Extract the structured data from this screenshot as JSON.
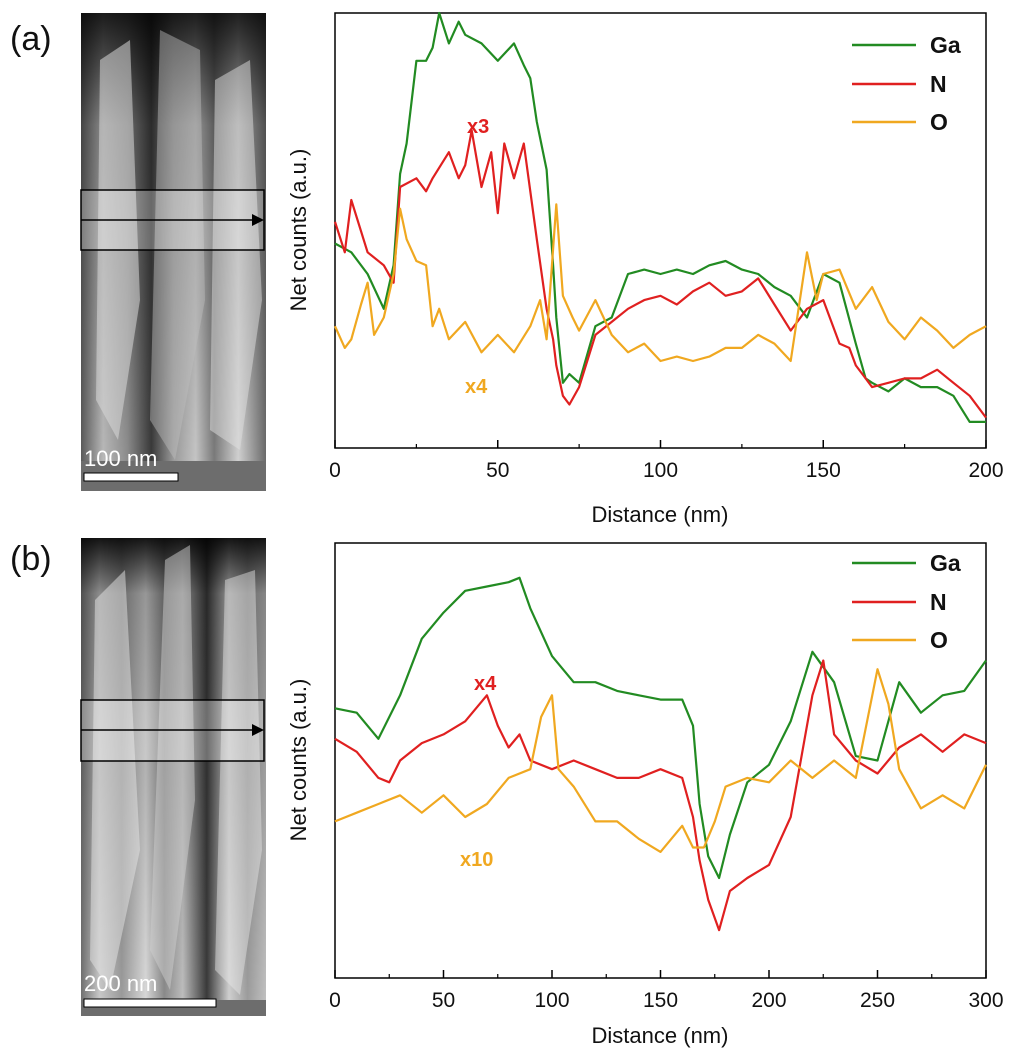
{
  "panels": [
    {
      "label": "(a)",
      "scale_bar": "100 nm"
    },
    {
      "label": "(b)",
      "scale_bar": "200 nm"
    }
  ],
  "colors": {
    "Ga": "#228b22",
    "N": "#e02020",
    "O": "#f0a820"
  },
  "chart_data": [
    {
      "type": "line",
      "title": "",
      "xlabel": "Distance (nm)",
      "ylabel": "Net counts (a.u.)",
      "xlim": [
        0,
        200
      ],
      "ylim": [
        0,
        10
      ],
      "xticks": [
        0,
        50,
        100,
        150,
        200
      ],
      "legend": {
        "position": "top-right",
        "entries": [
          "Ga",
          "N",
          "O"
        ]
      },
      "annotations": [
        {
          "text": "x3",
          "series": "N",
          "x": 45,
          "y": 7.5
        },
        {
          "text": "x4",
          "series": "O",
          "x": 45,
          "y": 1.4
        }
      ],
      "series": [
        {
          "name": "Ga",
          "x": [
            0,
            5,
            10,
            15,
            18,
            20,
            22,
            25,
            28,
            30,
            32,
            35,
            38,
            40,
            45,
            50,
            55,
            58,
            60,
            62,
            65,
            67,
            68,
            70,
            72,
            75,
            80,
            85,
            90,
            95,
            100,
            105,
            110,
            115,
            120,
            125,
            130,
            135,
            140,
            145,
            150,
            155,
            160,
            163,
            165,
            170,
            175,
            180,
            185,
            190,
            195,
            200
          ],
          "y": [
            4.7,
            4.5,
            4.0,
            3.2,
            4.2,
            6.3,
            7.0,
            8.9,
            8.9,
            9.2,
            10.0,
            9.3,
            9.8,
            9.5,
            9.3,
            8.9,
            9.3,
            8.8,
            8.5,
            7.5,
            6.4,
            4.2,
            3.0,
            1.5,
            1.7,
            1.5,
            2.8,
            3.0,
            4.0,
            4.1,
            4.0,
            4.1,
            4.0,
            4.2,
            4.3,
            4.1,
            4.0,
            3.7,
            3.5,
            3.0,
            4.0,
            3.8,
            2.4,
            1.6,
            1.5,
            1.3,
            1.6,
            1.4,
            1.4,
            1.2,
            0.6,
            0.6
          ]
        },
        {
          "name": "N",
          "x": [
            0,
            3,
            5,
            10,
            15,
            18,
            20,
            25,
            28,
            30,
            35,
            38,
            40,
            42,
            45,
            48,
            50,
            52,
            55,
            58,
            60,
            62,
            65,
            67,
            68,
            70,
            72,
            75,
            80,
            85,
            90,
            95,
            100,
            105,
            110,
            115,
            120,
            125,
            130,
            135,
            140,
            145,
            150,
            155,
            158,
            160,
            163,
            165,
            170,
            175,
            180,
            185,
            190,
            195,
            200
          ],
          "y": [
            5.2,
            4.5,
            5.7,
            4.5,
            4.2,
            3.8,
            6.0,
            6.2,
            5.9,
            6.2,
            6.8,
            6.2,
            6.5,
            7.3,
            6.0,
            6.8,
            5.4,
            7.0,
            6.2,
            7.0,
            5.9,
            4.8,
            3.2,
            2.5,
            1.9,
            1.2,
            1.0,
            1.4,
            2.6,
            2.9,
            3.2,
            3.4,
            3.5,
            3.3,
            3.6,
            3.8,
            3.5,
            3.6,
            3.9,
            3.3,
            2.7,
            3.2,
            3.4,
            2.4,
            2.3,
            1.9,
            1.6,
            1.4,
            1.5,
            1.6,
            1.6,
            1.8,
            1.5,
            1.2,
            0.7
          ]
        },
        {
          "name": "O",
          "x": [
            0,
            3,
            5,
            8,
            10,
            12,
            15,
            18,
            20,
            22,
            25,
            28,
            30,
            32,
            35,
            40,
            45,
            50,
            55,
            60,
            63,
            65,
            68,
            70,
            73,
            75,
            80,
            85,
            90,
            95,
            100,
            105,
            110,
            115,
            120,
            125,
            130,
            135,
            140,
            143,
            145,
            148,
            150,
            155,
            160,
            165,
            170,
            175,
            180,
            185,
            190,
            195,
            200
          ],
          "y": [
            2.8,
            2.3,
            2.5,
            3.3,
            3.8,
            2.6,
            3.0,
            4.0,
            5.5,
            4.8,
            4.3,
            4.2,
            2.8,
            3.2,
            2.5,
            2.9,
            2.2,
            2.6,
            2.2,
            2.8,
            3.4,
            2.5,
            5.6,
            3.5,
            3.0,
            2.7,
            3.4,
            2.6,
            2.2,
            2.4,
            2.0,
            2.1,
            2.0,
            2.1,
            2.3,
            2.3,
            2.6,
            2.4,
            2.0,
            3.5,
            4.5,
            3.4,
            4.0,
            4.1,
            3.2,
            3.7,
            2.9,
            2.5,
            3.0,
            2.7,
            2.3,
            2.6,
            2.8
          ]
        }
      ]
    },
    {
      "type": "line",
      "title": "",
      "xlabel": "Distance (nm)",
      "ylabel": "Net counts (a.u.)",
      "xlim": [
        0,
        300
      ],
      "ylim": [
        0,
        10
      ],
      "xticks": [
        0,
        50,
        100,
        150,
        200,
        250,
        300
      ],
      "legend": {
        "position": "top-right",
        "entries": [
          "Ga",
          "N",
          "O"
        ]
      },
      "annotations": [
        {
          "text": "x4",
          "series": "N",
          "x": 71,
          "y": 6.9
        },
        {
          "text": "x10",
          "series": "O",
          "x": 69,
          "y": 3.0
        }
      ],
      "series": [
        {
          "name": "Ga",
          "x": [
            0,
            10,
            20,
            30,
            40,
            50,
            60,
            70,
            80,
            85,
            90,
            100,
            110,
            120,
            130,
            140,
            150,
            160,
            165,
            168,
            172,
            177,
            182,
            190,
            200,
            210,
            220,
            230,
            240,
            250,
            260,
            270,
            280,
            290,
            300
          ],
          "y": [
            6.2,
            6.1,
            5.5,
            6.5,
            7.8,
            8.4,
            8.9,
            9.0,
            9.1,
            9.2,
            8.5,
            7.4,
            6.8,
            6.8,
            6.6,
            6.5,
            6.4,
            6.4,
            5.8,
            4.0,
            2.8,
            2.3,
            3.3,
            4.5,
            4.9,
            5.9,
            7.5,
            6.8,
            5.1,
            5.0,
            6.8,
            6.1,
            6.5,
            6.6,
            7.3
          ]
        },
        {
          "name": "N",
          "x": [
            0,
            10,
            20,
            25,
            30,
            40,
            50,
            60,
            70,
            75,
            80,
            85,
            90,
            100,
            110,
            120,
            130,
            140,
            150,
            160,
            165,
            168,
            172,
            177,
            182,
            190,
            200,
            210,
            220,
            225,
            230,
            240,
            250,
            260,
            270,
            280,
            290,
            300
          ],
          "y": [
            5.5,
            5.2,
            4.6,
            4.5,
            5.0,
            5.4,
            5.6,
            5.9,
            6.5,
            5.8,
            5.3,
            5.6,
            5.0,
            4.8,
            5.0,
            4.8,
            4.6,
            4.6,
            4.8,
            4.6,
            3.7,
            2.7,
            1.8,
            1.1,
            2.0,
            2.3,
            2.6,
            3.7,
            6.5,
            7.3,
            5.6,
            5.0,
            4.7,
            5.3,
            5.6,
            5.2,
            5.6,
            5.4
          ]
        },
        {
          "name": "O",
          "x": [
            0,
            10,
            20,
            30,
            40,
            50,
            60,
            70,
            80,
            90,
            95,
            100,
            103,
            110,
            120,
            130,
            140,
            150,
            155,
            160,
            165,
            170,
            175,
            180,
            190,
            200,
            210,
            220,
            230,
            240,
            250,
            255,
            260,
            270,
            280,
            290,
            300
          ],
          "y": [
            3.6,
            3.8,
            4.0,
            4.2,
            3.8,
            4.2,
            3.7,
            4.0,
            4.6,
            4.8,
            6.0,
            6.5,
            4.8,
            4.4,
            3.6,
            3.6,
            3.2,
            2.9,
            3.2,
            3.5,
            3.0,
            3.0,
            3.6,
            4.4,
            4.6,
            4.5,
            5.0,
            4.6,
            5.0,
            4.6,
            7.1,
            6.3,
            4.8,
            3.9,
            4.2,
            3.9,
            4.9
          ]
        }
      ]
    }
  ]
}
